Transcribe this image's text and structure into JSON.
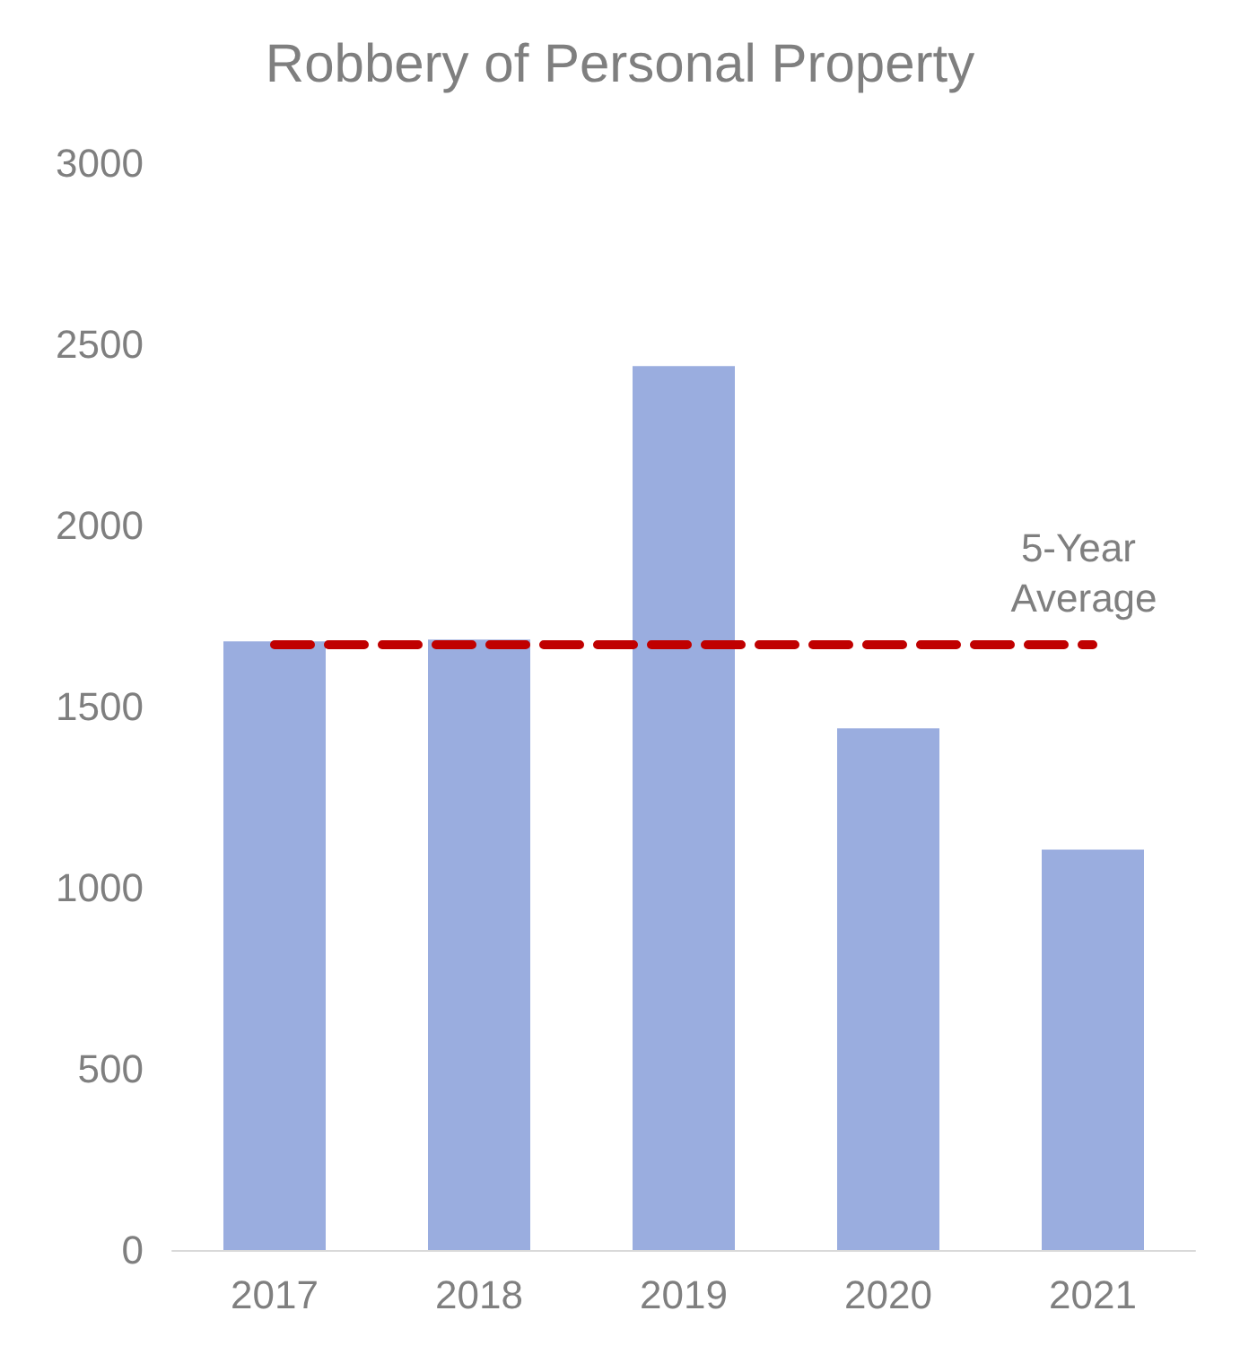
{
  "chart_data": {
    "type": "bar",
    "title": "Robbery of Personal Property",
    "categories": [
      "2017",
      "2018",
      "2019",
      "2020",
      "2021"
    ],
    "values": [
      1680,
      1685,
      2440,
      1440,
      1105
    ],
    "color": "#9aaddf",
    "ylim": [
      0,
      3000
    ],
    "yticks": [
      0,
      500,
      1000,
      1500,
      2000,
      2500,
      3000
    ],
    "grid": false,
    "ref_lines": [
      {
        "axis": "y",
        "value": 1670,
        "label": "5-Year Average",
        "color": "#c00000",
        "line_style": "dashed"
      }
    ]
  }
}
